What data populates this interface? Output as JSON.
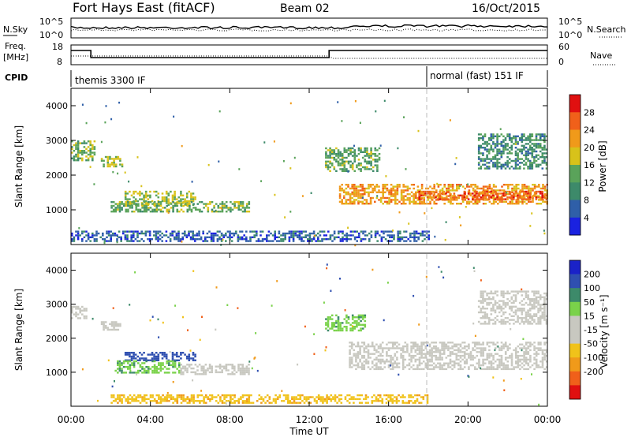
{
  "header": {
    "station": "Fort Hays East (fitACF)",
    "beam": "Beam 02",
    "date": "16/Oct/2015"
  },
  "top_panel": {
    "left_label": "N.Sky",
    "right_label": "N.Search",
    "left_ticks": [
      "10^5",
      "10^0"
    ],
    "right_ticks": [
      "10^5",
      "10^0"
    ]
  },
  "freq_panel": {
    "left_label_top": "Freq.",
    "left_label_unit": "[MHz]",
    "left_ticks": [
      "18",
      "8"
    ],
    "right_label": "Nave",
    "right_ticks": [
      "60",
      "0"
    ]
  },
  "cpid_panel": {
    "label": "CPID",
    "modes": [
      "themis 3300 IF",
      "normal (fast) 151 IF"
    ]
  },
  "chart_data": [
    {
      "type": "heatmap",
      "quantity": "Power",
      "ylabel": "Slant Range [km]",
      "ylim": [
        0,
        4500
      ],
      "y_ticks": [
        "1000",
        "2000",
        "3000",
        "4000"
      ],
      "colorbar_label": "Power [dB]",
      "colorbar_ticks": [
        "4",
        "8",
        "12",
        "16",
        "20",
        "24",
        "28"
      ],
      "colorbar_colors": [
        "#1a22e0",
        "#2f5fa8",
        "#3d8a6a",
        "#5aa35a",
        "#d8c21a",
        "#f09a1a",
        "#f0601a",
        "#e01010"
      ],
      "regions": [
        {
          "t0": 0.0,
          "t1": 1.2,
          "r0": 2450,
          "r1": 3000,
          "value": 14
        },
        {
          "t0": 1.5,
          "t1": 2.6,
          "r0": 2250,
          "r1": 2550,
          "value": 16
        },
        {
          "t0": 2.7,
          "t1": 6.3,
          "r0": 1150,
          "r1": 1550,
          "value": 16
        },
        {
          "t0": 2.0,
          "t1": 9.0,
          "r0": 950,
          "r1": 1250,
          "value": 14
        },
        {
          "t0": 12.8,
          "t1": 15.5,
          "r0": 2100,
          "r1": 2800,
          "value": 13
        },
        {
          "t0": 13.5,
          "t1": 24.0,
          "r0": 1150,
          "r1": 1750,
          "value": 22
        },
        {
          "t0": 17.5,
          "t1": 24.0,
          "r0": 1300,
          "r1": 1550,
          "value": 26
        },
        {
          "t0": 20.5,
          "t1": 24.0,
          "r0": 2200,
          "r1": 3200,
          "value": 10
        },
        {
          "t0": 0.0,
          "t1": 18.0,
          "r0": 100,
          "r1": 400,
          "value": 6
        }
      ]
    },
    {
      "type": "heatmap",
      "quantity": "Velocity",
      "ylabel": "Slant Range [km]",
      "ylim": [
        0,
        4500
      ],
      "y_ticks": [
        "1000",
        "2000",
        "3000",
        "4000"
      ],
      "colorbar_label": "Velocity [m s⁻¹]",
      "colorbar_ticks": [
        "200",
        "100",
        "50",
        "15",
        "-15",
        "-50",
        "-100",
        "-200"
      ],
      "colorbar_colors": [
        "#1a22c8",
        "#2f4fb0",
        "#3d8a6a",
        "#7ad24a",
        "#c8c8c0",
        "#c8c8c0",
        "#f0c21a",
        "#f09a1a",
        "#f0601a",
        "#e01010"
      ],
      "regions": [
        {
          "t0": 0.0,
          "t1": 0.8,
          "r0": 2600,
          "r1": 2950,
          "value": 0
        },
        {
          "t0": 1.5,
          "t1": 2.5,
          "r0": 2250,
          "r1": 2500,
          "value": 0
        },
        {
          "t0": 2.7,
          "t1": 6.3,
          "r0": 1350,
          "r1": 1600,
          "value": 150
        },
        {
          "t0": 2.2,
          "t1": 5.5,
          "r0": 1000,
          "r1": 1350,
          "value": 40
        },
        {
          "t0": 5.5,
          "t1": 9.0,
          "r0": 950,
          "r1": 1250,
          "value": 0
        },
        {
          "t0": 12.8,
          "t1": 14.8,
          "r0": 2250,
          "r1": 2700,
          "value": 40
        },
        {
          "t0": 14.0,
          "t1": 24.0,
          "r0": 1100,
          "r1": 1900,
          "value": 0
        },
        {
          "t0": 20.5,
          "t1": 24.0,
          "r0": 2400,
          "r1": 3400,
          "value": 0
        },
        {
          "t0": 2.0,
          "t1": 18.0,
          "r0": 100,
          "r1": 350,
          "value": -40
        }
      ]
    }
  ],
  "x_axis": {
    "ticks": [
      "00:00",
      "04:00",
      "08:00",
      "12:00",
      "16:00",
      "20:00",
      "00:00"
    ],
    "label": "Time UT"
  }
}
